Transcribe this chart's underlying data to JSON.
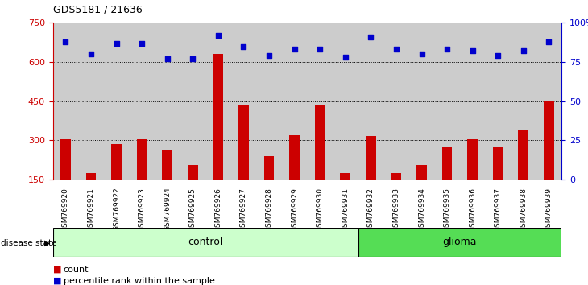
{
  "title": "GDS5181 / 21636",
  "samples": [
    "GSM769920",
    "GSM769921",
    "GSM769922",
    "GSM769923",
    "GSM769924",
    "GSM769925",
    "GSM769926",
    "GSM769927",
    "GSM769928",
    "GSM769929",
    "GSM769930",
    "GSM769931",
    "GSM769932",
    "GSM769933",
    "GSM769934",
    "GSM769935",
    "GSM769936",
    "GSM769937",
    "GSM769938",
    "GSM769939"
  ],
  "bar_values": [
    305,
    175,
    285,
    305,
    265,
    205,
    630,
    435,
    240,
    320,
    435,
    175,
    315,
    175,
    205,
    275,
    305,
    275,
    340,
    450
  ],
  "dot_values_pct": [
    88,
    80,
    87,
    87,
    77,
    77,
    92,
    85,
    79,
    83,
    83,
    78,
    91,
    83,
    80,
    83,
    82,
    79,
    82,
    88
  ],
  "control_count": 12,
  "glioma_count": 8,
  "ylim_left": [
    150,
    750
  ],
  "ylim_right": [
    0,
    100
  ],
  "yticks_left": [
    150,
    300,
    450,
    600,
    750
  ],
  "yticks_right": [
    0,
    25,
    50,
    75,
    100
  ],
  "bar_color": "#cc0000",
  "dot_color": "#0000cc",
  "col_bg_color": "#cccccc",
  "control_bg": "#ccffcc",
  "glioma_bg": "#55dd55",
  "legend_count_label": "count",
  "legend_pct_label": "percentile rank within the sample",
  "disease_state_label": "disease state",
  "control_label": "control",
  "glioma_label": "glioma"
}
